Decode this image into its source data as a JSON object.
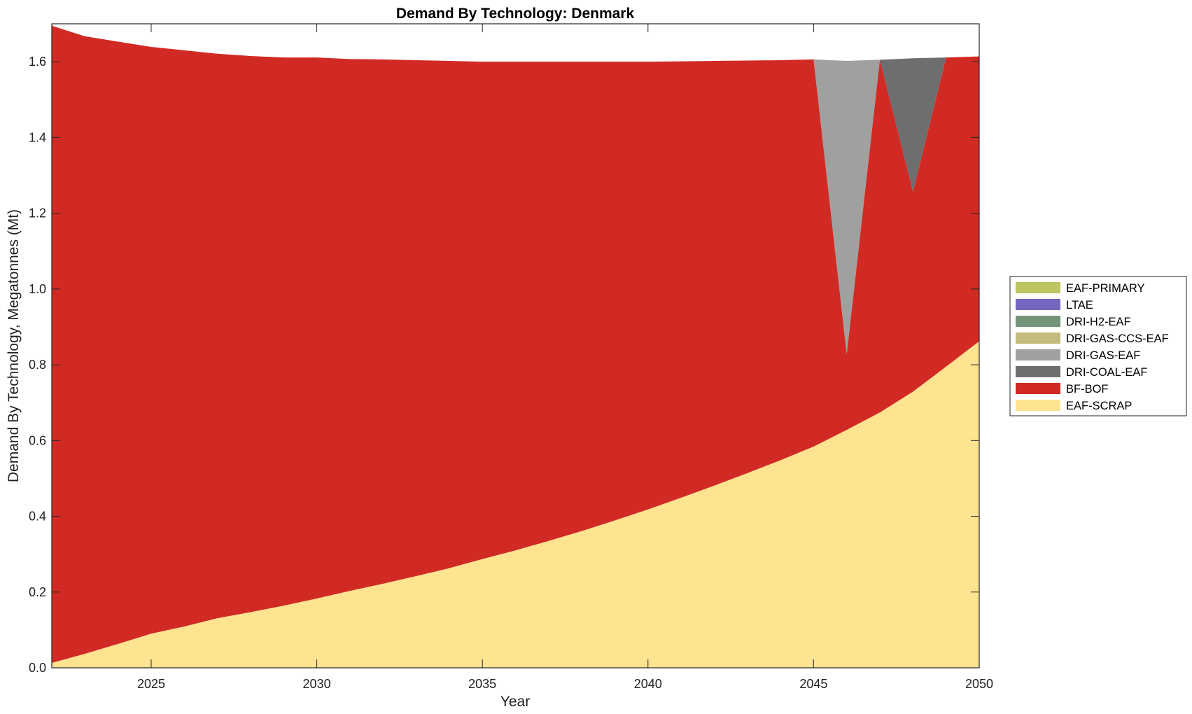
{
  "chart_data": {
    "type": "area",
    "stacked": true,
    "title": "Demand By Technology: Denmark",
    "xlabel": "Year",
    "ylabel": "Demand By Technology, Megatonnes (Mt)",
    "xlim": [
      2022,
      2050
    ],
    "ylim": [
      0,
      1.7
    ],
    "xticks": [
      2025,
      2030,
      2035,
      2040,
      2045,
      2050
    ],
    "yticks": [
      "0.0",
      "0.2",
      "0.4",
      "0.6",
      "0.8",
      "1.0",
      "1.2",
      "1.4",
      "1.6"
    ],
    "legend_position": "right",
    "grid": false,
    "x": [
      2022,
      2023,
      2024,
      2025,
      2026,
      2027,
      2028,
      2029,
      2030,
      2031,
      2032,
      2033,
      2034,
      2035,
      2036,
      2037,
      2038,
      2039,
      2040,
      2041,
      2042,
      2043,
      2044,
      2045,
      2046,
      2047,
      2048,
      2049,
      2050
    ],
    "series": [
      {
        "name": "EAF-SCRAP",
        "color": "#FEE391",
        "values": [
          0.013,
          0.037,
          0.063,
          0.09,
          0.109,
          0.131,
          0.147,
          0.164,
          0.183,
          0.203,
          0.222,
          0.242,
          0.263,
          0.287,
          0.31,
          0.335,
          0.361,
          0.389,
          0.418,
          0.449,
          0.481,
          0.514,
          0.548,
          0.584,
          0.628,
          0.674,
          0.729,
          0.795,
          0.862
        ]
      },
      {
        "name": "BF-BOF",
        "color": "#D12A24",
        "values": [
          1.682,
          1.63,
          1.59,
          1.549,
          1.521,
          1.49,
          1.468,
          1.447,
          1.428,
          1.404,
          1.384,
          1.362,
          1.339,
          1.313,
          1.29,
          1.265,
          1.239,
          1.211,
          1.182,
          1.152,
          1.121,
          1.089,
          1.056,
          1.022,
          0.2,
          0.931,
          0.528,
          0.816,
          0.752
        ]
      },
      {
        "name": "DRI-COAL-EAF",
        "color": "#6E6E6E",
        "values": [
          0,
          0,
          0,
          0,
          0,
          0,
          0,
          0,
          0,
          0,
          0,
          0,
          0,
          0,
          0,
          0,
          0,
          0,
          0,
          0,
          0,
          0,
          0,
          0,
          0,
          0,
          0.352,
          0,
          0
        ]
      },
      {
        "name": "DRI-GAS-EAF",
        "color": "#A0A09E",
        "values": [
          0,
          0,
          0,
          0,
          0,
          0,
          0,
          0,
          0,
          0,
          0,
          0,
          0,
          0,
          0,
          0,
          0,
          0,
          0,
          0,
          0,
          0,
          0,
          0,
          0.774,
          0,
          0,
          0,
          0
        ]
      },
      {
        "name": "DRI-GAS-CCS-EAF",
        "color": "#C3BA7E",
        "values": [
          0,
          0,
          0,
          0,
          0,
          0,
          0,
          0,
          0,
          0,
          0,
          0,
          0,
          0,
          0,
          0,
          0,
          0,
          0,
          0,
          0,
          0,
          0,
          0,
          0,
          0,
          0,
          0,
          0
        ]
      },
      {
        "name": "DRI-H2-EAF",
        "color": "#749479",
        "values": [
          0,
          0,
          0,
          0,
          0,
          0,
          0,
          0,
          0,
          0,
          0,
          0,
          0,
          0,
          0,
          0,
          0,
          0,
          0,
          0,
          0,
          0,
          0,
          0,
          0,
          0,
          0,
          0,
          0
        ]
      },
      {
        "name": "LTAE",
        "color": "#7467C2",
        "values": [
          0,
          0,
          0,
          0,
          0,
          0,
          0,
          0,
          0,
          0,
          0,
          0,
          0,
          0,
          0,
          0,
          0,
          0,
          0,
          0,
          0,
          0,
          0,
          0,
          0,
          0,
          0,
          0,
          0
        ]
      },
      {
        "name": "EAF-PRIMARY",
        "color": "#BCC562",
        "values": [
          0,
          0,
          0,
          0,
          0,
          0,
          0,
          0,
          0,
          0,
          0,
          0,
          0,
          0,
          0,
          0,
          0,
          0,
          0,
          0,
          0,
          0,
          0,
          0,
          0,
          0,
          0,
          0,
          0
        ]
      }
    ],
    "legend_order": [
      "EAF-PRIMARY",
      "LTAE",
      "DRI-H2-EAF",
      "DRI-GAS-CCS-EAF",
      "DRI-GAS-EAF",
      "DRI-COAL-EAF",
      "BF-BOF",
      "EAF-SCRAP"
    ]
  }
}
